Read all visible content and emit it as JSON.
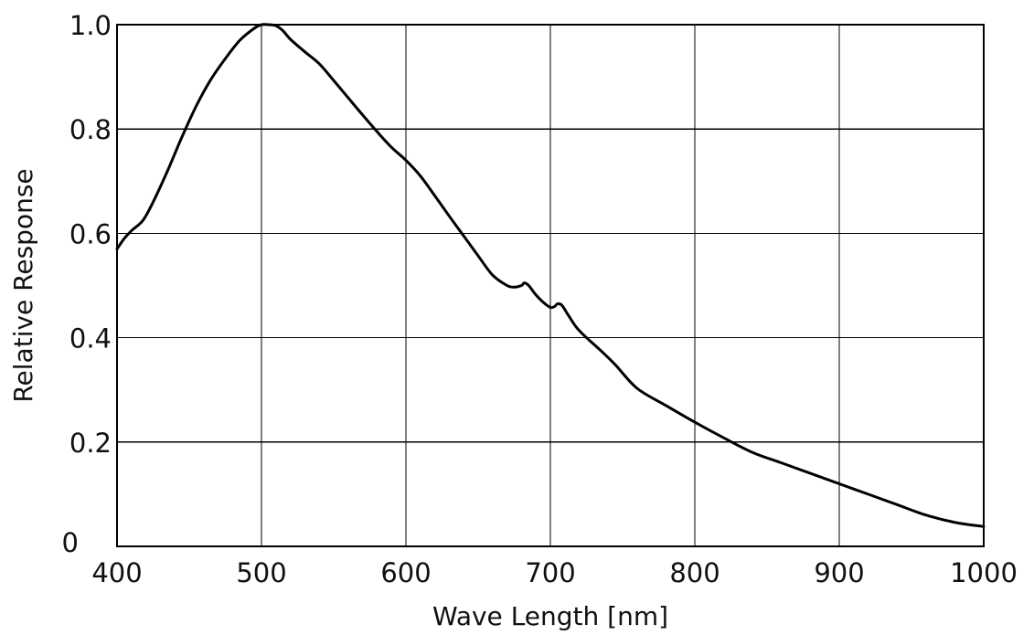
{
  "chart_data": {
    "type": "line",
    "title": "",
    "xlabel": "Wave Length [nm]",
    "ylabel": "Relative Response",
    "xlim": [
      400,
      1000
    ],
    "ylim": [
      0,
      1.0
    ],
    "xticks": [
      400,
      500,
      600,
      700,
      800,
      900,
      1000
    ],
    "xtick_labels": [
      "400",
      "500",
      "600",
      "700",
      "800",
      "900",
      "1000"
    ],
    "yticks": [
      0,
      0.2,
      0.4,
      0.6,
      0.8,
      1.0
    ],
    "ytick_labels": [
      "0",
      "0.2",
      "0.4",
      "0.6",
      "0.8",
      "1.0"
    ],
    "grid": true,
    "legend": "none",
    "line_color": "#000000",
    "series": [
      {
        "x": [
          400,
          405,
          410,
          418,
          425,
          435,
          445,
          455,
          465,
          475,
          485,
          495,
          500,
          505,
          510,
          515,
          520,
          530,
          540,
          550,
          560,
          570,
          580,
          590,
          600,
          610,
          620,
          630,
          640,
          650,
          660,
          670,
          675,
          680,
          682,
          685,
          690,
          695,
          700,
          703,
          705,
          708,
          712,
          718,
          725,
          735,
          745,
          760,
          780,
          800,
          820,
          840,
          860,
          880,
          900,
          920,
          940,
          960,
          980,
          1000
        ],
        "y": [
          0.57,
          0.59,
          0.605,
          0.625,
          0.66,
          0.72,
          0.785,
          0.845,
          0.895,
          0.935,
          0.97,
          0.993,
          1.0,
          1.0,
          0.998,
          0.988,
          0.972,
          0.948,
          0.925,
          0.893,
          0.86,
          0.827,
          0.795,
          0.765,
          0.74,
          0.71,
          0.672,
          0.633,
          0.595,
          0.557,
          0.52,
          0.5,
          0.497,
          0.5,
          0.505,
          0.5,
          0.482,
          0.468,
          0.458,
          0.46,
          0.465,
          0.462,
          0.445,
          0.42,
          0.4,
          0.375,
          0.348,
          0.303,
          0.27,
          0.238,
          0.208,
          0.18,
          0.16,
          0.14,
          0.12,
          0.1,
          0.08,
          0.06,
          0.046,
          0.038
        ]
      }
    ]
  }
}
